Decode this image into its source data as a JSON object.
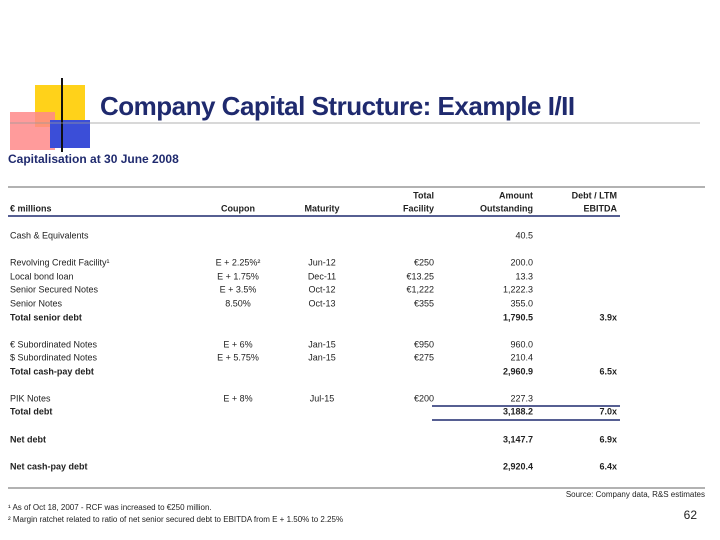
{
  "header": {
    "title": "Company Capital Structure: Example I/II",
    "subtitle": "Capitalisation at 30 June 2008"
  },
  "table": {
    "columns": [
      [
        "€ millions"
      ],
      [
        "Coupon"
      ],
      [
        "Maturity"
      ],
      [
        "Total",
        "Facility"
      ],
      [
        "Amount",
        "Outstanding"
      ],
      [
        "Debt / LTM",
        "EBITDA"
      ]
    ],
    "rows": [
      {
        "label": "Cash & Equivalents",
        "amount": "40.5"
      },
      {
        "label": "Revolving Credit Facility¹",
        "coupon": "E + 2.25%²",
        "maturity": "Jun-12",
        "facility": "€250",
        "amount": "200.0"
      },
      {
        "label": "Local bond loan",
        "coupon": "E + 1.75%",
        "maturity": "Dec-11",
        "facility": "€13.25",
        "amount": "13.3"
      },
      {
        "label": "Senior Secured Notes",
        "coupon": "E + 3.5%",
        "maturity": "Oct-12",
        "facility": "€1,222",
        "amount": "1,222.3"
      },
      {
        "label": "Senior Notes",
        "coupon": "8.50%",
        "maturity": "Oct-13",
        "facility": "€355",
        "amount": "355.0"
      },
      {
        "label": "Total senior debt",
        "amount": "1,790.5",
        "ratio": "3.9x",
        "total": true
      },
      {
        "label": "€ Subordinated Notes",
        "coupon": "E + 6%",
        "maturity": "Jan-15",
        "facility": "€950",
        "amount": "960.0"
      },
      {
        "label": "$ Subordinated Notes",
        "coupon": "E + 5.75%",
        "maturity": "Jan-15",
        "facility": "€275",
        "amount": "210.4"
      },
      {
        "label": "Total cash-pay debt",
        "amount": "2,960.9",
        "ratio": "6.5x",
        "total": true
      },
      {
        "label": "PIK Notes",
        "coupon": "E + 8%",
        "maturity": "Jul-15",
        "facility": "€200",
        "amount": "227.3"
      },
      {
        "label": "Total debt",
        "amount": "3,188.2",
        "ratio": "7.0x",
        "total": true
      },
      {
        "label": "Net debt",
        "amount": "3,147.7",
        "ratio": "6.9x",
        "total": true
      },
      {
        "label": "Net cash-pay debt",
        "amount": "2,920.4",
        "ratio": "6.4x",
        "total": true
      }
    ]
  },
  "source": "Source: Company data, R&S estimates",
  "footnotes": [
    "¹ As of Oct 18, 2007 - RCF was increased to €250 million.",
    "² Margin ratchet related to ratio of net senior secured debt to EBITDA from E + 1.50% to 2.25%"
  ],
  "page_number": "62"
}
